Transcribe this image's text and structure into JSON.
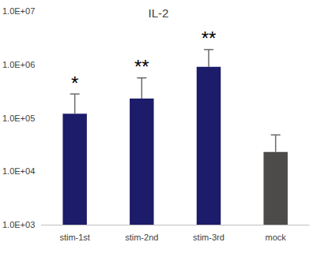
{
  "chart_data": {
    "type": "bar",
    "title": "IL-2",
    "categories": [
      "stim-1st",
      "stim-2nd",
      "stim-3rd",
      "mock"
    ],
    "values": [
      120000,
      230000,
      900000,
      23000
    ],
    "errors": [
      160000,
      330000,
      1000000,
      25000
    ],
    "significance": [
      "*",
      "**",
      "**",
      null
    ],
    "colors": [
      "#1c1c6b",
      "#1c1c6b",
      "#1c1c6b",
      "#4d4b4a"
    ],
    "log": "y",
    "ylim": [
      1000,
      10000000
    ],
    "yticks": [
      {
        "value": 1000,
        "label": "1.0E+03"
      },
      {
        "value": 10000,
        "label": "1.0E+04"
      },
      {
        "value": 100000,
        "label": "1.0E+05"
      },
      {
        "value": 1000000,
        "label": "1.0E+06"
      },
      {
        "value": 10000000,
        "label": "1.0E+07"
      }
    ],
    "grid": false
  }
}
